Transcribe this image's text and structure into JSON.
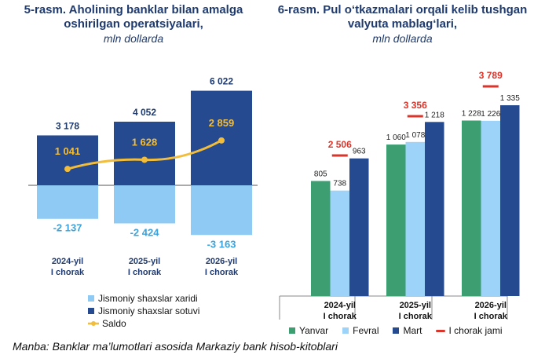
{
  "titles": {
    "left_main": "5-rasm. Aholining banklar bilan amalga oshirilgan operatsiyalari,",
    "left_sub": "mln dollarda",
    "right_main": "6-rasm. Pul o‘tkazmalari orqali kelib tushgan valyuta mablag‘lari,",
    "right_sub": "mln dollarda"
  },
  "source": "Manba: Banklar ma’lumotlari asosida Markaziy bank hisob-kitoblari",
  "colors": {
    "sotuvi": "#264a8f",
    "xaridi": "#8ecaf4",
    "saldo": "#f2bd3b",
    "yanvar": "#3d9e72",
    "fevral": "#9dd3f8",
    "mart": "#264a8f",
    "jami": "#d9352b",
    "label_dark": "#1f3a6e",
    "label_light": "#3aa3dd",
    "label_saldo": "#f2bd3b"
  },
  "chart_data": [
    {
      "type": "bar",
      "categories": [
        [
          "2024-yil",
          "I chorak"
        ],
        [
          "2025-yil",
          "I chorak"
        ],
        [
          "2026-yil",
          "I chorak"
        ]
      ],
      "series": [
        {
          "name": "Jismoniy shaxslar xaridi",
          "values": [
            -2137,
            -2424,
            -3163
          ],
          "labels": [
            "-2 137",
            "-2 424",
            "-3 163"
          ]
        },
        {
          "name": "Jismoniy shaxslar sotuvi",
          "values": [
            3178,
            4052,
            6022
          ],
          "labels": [
            "3 178",
            "4 052",
            "6 022"
          ]
        },
        {
          "name": "Saldo",
          "type": "line",
          "values": [
            1041,
            1628,
            2859
          ],
          "labels": [
            "1 041",
            "1 628",
            "2 859"
          ]
        }
      ]
    },
    {
      "type": "bar",
      "categories": [
        [
          "2024-yil",
          "I chorak"
        ],
        [
          "2025-yil",
          "I chorak"
        ],
        [
          "2026-yil",
          "I chorak"
        ]
      ],
      "series": [
        {
          "name": "Yanvar",
          "values": [
            805,
            1060,
            1228
          ],
          "labels": [
            "805",
            "1 060",
            "1 228"
          ]
        },
        {
          "name": "Fevral",
          "values": [
            738,
            1078,
            1226
          ],
          "labels": [
            "738",
            "1 078",
            "1 226"
          ]
        },
        {
          "name": "Mart",
          "values": [
            963,
            1218,
            1335
          ],
          "labels": [
            "963",
            "1 218",
            "1 335"
          ]
        },
        {
          "name": "I chorak jami",
          "type": "marker",
          "values": [
            2506,
            3356,
            3789
          ],
          "labels": [
            "2 506",
            "3 356",
            "3 789"
          ]
        }
      ]
    }
  ]
}
